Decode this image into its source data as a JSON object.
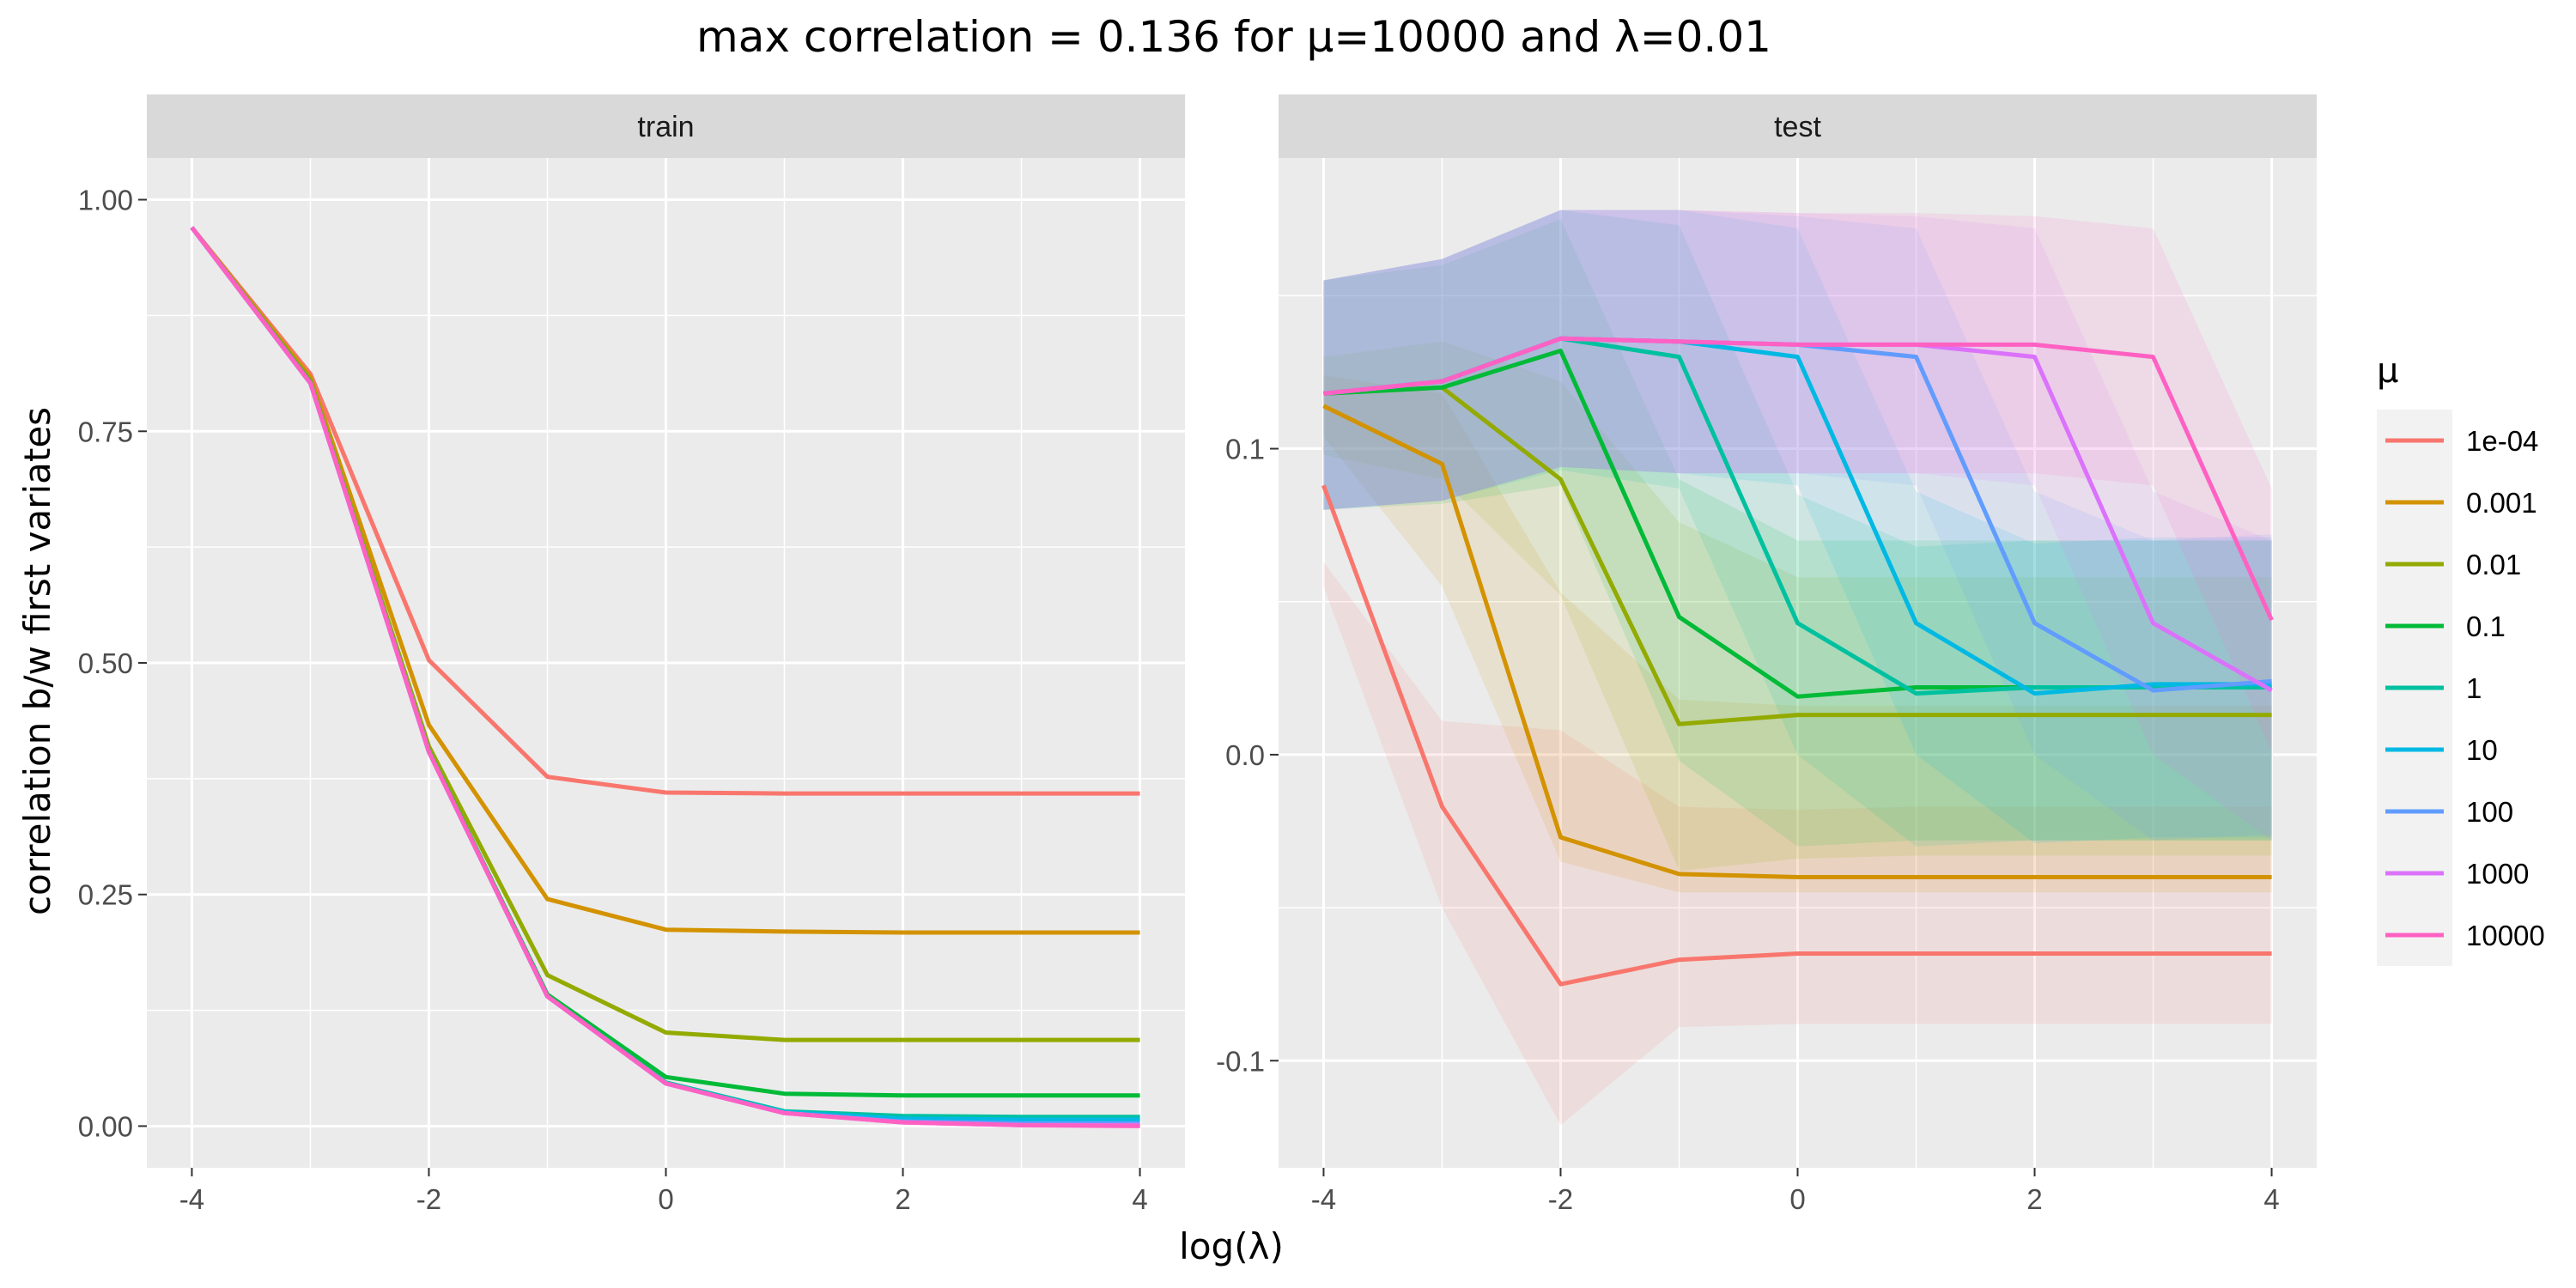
{
  "chart_data": {
    "type": "line",
    "title": "max correlation = 0.136  for  μ=10000  and  λ=0.01",
    "xlabel": "log(λ)",
    "ylabel": "correlation b/w first variates",
    "x": [
      -4,
      -3,
      -2,
      -1,
      0,
      1,
      2,
      3,
      4
    ],
    "x_ticks": [
      "-4",
      "-2",
      "0",
      "2",
      "4"
    ],
    "legend_title": "μ",
    "legend_position": "right",
    "grid": true,
    "series_names": [
      "1e-04",
      "0.001",
      "0.01",
      "0.1",
      "1",
      "10",
      "100",
      "1000",
      "10000"
    ],
    "colors": [
      "#F8766D",
      "#D39200",
      "#93AA00",
      "#00BA38",
      "#00C19F",
      "#00B9E3",
      "#619CFF",
      "#DB72FB",
      "#FF61C3"
    ],
    "panels": [
      {
        "strip": "train",
        "ylim": [
          -0.045,
          1.045
        ],
        "y_ticks": [
          "0.00",
          "0.25",
          "0.50",
          "0.75",
          "1.00"
        ],
        "y_tick_values": [
          0,
          0.25,
          0.5,
          0.75,
          1.0
        ],
        "series": [
          {
            "name": "1e-04",
            "values": [
              0.97,
              0.812,
              0.503,
              0.377,
              0.36,
              0.359,
              0.359,
              0.359,
              0.359
            ]
          },
          {
            "name": "0.001",
            "values": [
              0.97,
              0.808,
              0.433,
              0.245,
              0.212,
              0.21,
              0.209,
              0.209,
              0.209
            ]
          },
          {
            "name": "0.01",
            "values": [
              0.97,
              0.805,
              0.41,
              0.163,
              0.101,
              0.093,
              0.093,
              0.093,
              0.093
            ]
          },
          {
            "name": "0.1",
            "values": [
              0.97,
              0.803,
              0.405,
              0.142,
              0.053,
              0.035,
              0.033,
              0.033,
              0.033
            ]
          },
          {
            "name": "1",
            "values": [
              0.97,
              0.802,
              0.404,
              0.14,
              0.047,
              0.016,
              0.011,
              0.01,
              0.01
            ]
          },
          {
            "name": "10",
            "values": [
              0.97,
              0.802,
              0.404,
              0.14,
              0.046,
              0.015,
              0.008,
              0.007,
              0.007
            ]
          },
          {
            "name": "100",
            "values": [
              0.97,
              0.802,
              0.404,
              0.14,
              0.046,
              0.014,
              0.005,
              0.003,
              0.003
            ]
          },
          {
            "name": "1000",
            "values": [
              0.97,
              0.802,
              0.404,
              0.14,
              0.046,
              0.014,
              0.004,
              0.001,
              0.001
            ]
          },
          {
            "name": "10000",
            "values": [
              0.97,
              0.802,
              0.404,
              0.14,
              0.046,
              0.014,
              0.004,
              0.001,
              0.0
            ]
          }
        ]
      },
      {
        "strip": "test",
        "ylim": [
          -0.135,
          0.195
        ],
        "y_ticks": [
          "-0.1",
          "0.0",
          "0.1"
        ],
        "y_tick_values": [
          -0.1,
          0.0,
          0.1
        ],
        "series": [
          {
            "name": "1e-04",
            "values": [
              0.088,
              -0.017,
              -0.075,
              -0.067,
              -0.065,
              -0.065,
              -0.065,
              -0.065,
              -0.065
            ],
            "upper": [
              0.063,
              0.011,
              0.008,
              -0.017,
              -0.018,
              -0.017,
              -0.017,
              -0.017,
              -0.017
            ],
            "lower": [
              0.055,
              -0.05,
              -0.121,
              -0.089,
              -0.088,
              -0.088,
              -0.088,
              -0.088,
              -0.088
            ]
          },
          {
            "name": "0.001",
            "values": [
              0.114,
              0.095,
              -0.027,
              -0.039,
              -0.04,
              -0.04,
              -0.04,
              -0.04,
              -0.04
            ],
            "upper": [
              0.124,
              0.118,
              0.053,
              0.018,
              0.016,
              0.016,
              0.016,
              0.016,
              0.016
            ],
            "lower": [
              0.104,
              0.055,
              -0.035,
              -0.045,
              -0.045,
              -0.045,
              -0.045,
              -0.045,
              -0.045
            ]
          },
          {
            "name": "0.01",
            "values": [
              0.118,
              0.12,
              0.09,
              0.01,
              0.013,
              0.013,
              0.013,
              0.013,
              0.013
            ],
            "upper": [
              0.13,
              0.135,
              0.122,
              0.076,
              0.058,
              0.058,
              0.058,
              0.058,
              0.058
            ],
            "lower": [
              0.098,
              0.09,
              0.052,
              -0.038,
              -0.034,
              -0.033,
              -0.033,
              -0.033,
              -0.033
            ]
          },
          {
            "name": "0.1",
            "values": [
              0.118,
              0.12,
              0.132,
              0.045,
              0.019,
              0.022,
              0.022,
              0.022,
              0.022
            ],
            "upper": [
              0.155,
              0.16,
              0.175,
              0.09,
              0.07,
              0.07,
              0.07,
              0.07,
              0.07
            ],
            "lower": [
              0.08,
              0.082,
              0.088,
              -0.002,
              -0.03,
              -0.028,
              -0.028,
              -0.028,
              -0.028
            ]
          },
          {
            "name": "1",
            "values": [
              0.118,
              0.122,
              0.136,
              0.13,
              0.043,
              0.02,
              0.022,
              0.022,
              0.022
            ],
            "upper": [
              0.155,
              0.162,
              0.178,
              0.173,
              0.085,
              0.068,
              0.07,
              0.07,
              0.07
            ],
            "lower": [
              0.08,
              0.083,
              0.093,
              0.087,
              0.0,
              -0.03,
              -0.028,
              -0.028,
              -0.028
            ]
          },
          {
            "name": "10",
            "values": [
              0.118,
              0.122,
              0.136,
              0.135,
              0.13,
              0.043,
              0.02,
              0.023,
              0.023
            ],
            "upper": [
              0.155,
              0.162,
              0.178,
              0.178,
              0.172,
              0.086,
              0.069,
              0.071,
              0.071
            ],
            "lower": [
              0.08,
              0.083,
              0.094,
              0.092,
              0.088,
              0.0,
              -0.029,
              -0.027,
              -0.027
            ]
          },
          {
            "name": "100",
            "values": [
              0.118,
              0.122,
              0.136,
              0.135,
              0.134,
              0.13,
              0.043,
              0.021,
              0.024
            ],
            "upper": [
              0.155,
              0.162,
              0.178,
              0.178,
              0.176,
              0.172,
              0.086,
              0.07,
              0.072
            ],
            "lower": [
              0.08,
              0.083,
              0.094,
              0.092,
              0.092,
              0.088,
              0.0,
              -0.028,
              -0.026
            ]
          },
          {
            "name": "1000",
            "values": [
              0.118,
              0.122,
              0.136,
              0.135,
              0.134,
              0.134,
              0.13,
              0.043,
              0.021
            ],
            "upper": [
              0.155,
              0.162,
              0.178,
              0.178,
              0.177,
              0.176,
              0.172,
              0.086,
              0.07
            ],
            "lower": [
              0.08,
              0.083,
              0.094,
              0.092,
              0.092,
              0.092,
              0.088,
              0.0,
              -0.028
            ]
          },
          {
            "name": "10000",
            "values": [
              0.118,
              0.122,
              0.136,
              0.135,
              0.134,
              0.134,
              0.134,
              0.13,
              0.044
            ],
            "upper": [
              0.155,
              0.162,
              0.178,
              0.178,
              0.177,
              0.177,
              0.176,
              0.172,
              0.087
            ],
            "lower": [
              0.08,
              0.083,
              0.094,
              0.092,
              0.092,
              0.092,
              0.092,
              0.088,
              0.001
            ]
          }
        ]
      }
    ]
  }
}
